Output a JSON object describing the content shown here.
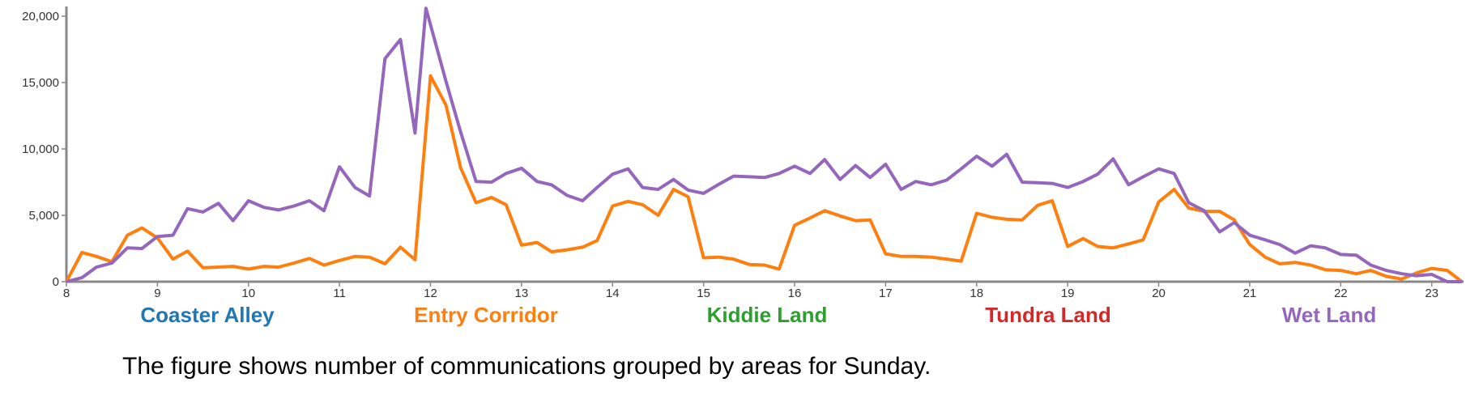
{
  "chart_data": {
    "type": "line",
    "title": "",
    "xlabel": "",
    "ylabel": "",
    "xlim": [
      8,
      23.35
    ],
    "ylim": [
      0,
      20000
    ],
    "grid": false,
    "x_ticks": [
      8,
      9,
      10,
      11,
      12,
      13,
      14,
      15,
      16,
      17,
      18,
      19,
      20,
      21,
      22,
      23
    ],
    "y_ticks": [
      {
        "value": 0,
        "label": "0"
      },
      {
        "value": 5000,
        "label": "5,000"
      },
      {
        "value": 10000,
        "label": "10,000"
      },
      {
        "value": 15000,
        "label": "15,000"
      },
      {
        "value": 20000,
        "label": "20,000"
      }
    ],
    "legend": {
      "placement": "bottom",
      "items": [
        {
          "label": "Coaster Alley",
          "color": "#1f77b4"
        },
        {
          "label": "Entry Corridor",
          "color": "#ff7f0e"
        },
        {
          "label": "Kiddie Land",
          "color": "#2ca02c"
        },
        {
          "label": "Tundra Land",
          "color": "#d62728"
        },
        {
          "label": "Wet Land",
          "color": "#9467bd"
        }
      ]
    },
    "series": [
      {
        "name": "Entry Corridor",
        "color": "#ff7f0e",
        "points": [
          [
            8.0,
            0
          ],
          [
            8.17,
            2200
          ],
          [
            8.33,
            1900
          ],
          [
            8.5,
            1500
          ],
          [
            8.67,
            3500
          ],
          [
            8.83,
            4050
          ],
          [
            9.0,
            3300
          ],
          [
            9.17,
            1700
          ],
          [
            9.33,
            2300
          ],
          [
            9.5,
            1050
          ],
          [
            9.67,
            1100
          ],
          [
            9.83,
            1150
          ],
          [
            10.0,
            950
          ],
          [
            10.17,
            1150
          ],
          [
            10.33,
            1100
          ],
          [
            10.5,
            1400
          ],
          [
            10.67,
            1750
          ],
          [
            10.83,
            1250
          ],
          [
            11.0,
            1600
          ],
          [
            11.17,
            1900
          ],
          [
            11.33,
            1850
          ],
          [
            11.5,
            1350
          ],
          [
            11.67,
            2600
          ],
          [
            11.83,
            1650
          ],
          [
            12.0,
            15500
          ],
          [
            12.17,
            13300
          ],
          [
            12.33,
            8600
          ],
          [
            12.5,
            5950
          ],
          [
            12.67,
            6350
          ],
          [
            12.83,
            5800
          ],
          [
            13.0,
            2750
          ],
          [
            13.17,
            2950
          ],
          [
            13.33,
            2250
          ],
          [
            13.5,
            2400
          ],
          [
            13.67,
            2600
          ],
          [
            13.83,
            3100
          ],
          [
            14.0,
            5700
          ],
          [
            14.17,
            6050
          ],
          [
            14.33,
            5800
          ],
          [
            14.5,
            5000
          ],
          [
            14.67,
            6950
          ],
          [
            14.83,
            6400
          ],
          [
            15.0,
            1800
          ],
          [
            15.17,
            1850
          ],
          [
            15.33,
            1700
          ],
          [
            15.5,
            1300
          ],
          [
            15.67,
            1250
          ],
          [
            15.83,
            950
          ],
          [
            16.0,
            4250
          ],
          [
            16.17,
            4800
          ],
          [
            16.33,
            5350
          ],
          [
            16.5,
            4950
          ],
          [
            16.67,
            4600
          ],
          [
            16.83,
            4650
          ],
          [
            17.0,
            2100
          ],
          [
            17.17,
            1900
          ],
          [
            17.33,
            1900
          ],
          [
            17.5,
            1850
          ],
          [
            17.67,
            1700
          ],
          [
            17.83,
            1550
          ],
          [
            18.0,
            5150
          ],
          [
            18.17,
            4850
          ],
          [
            18.33,
            4700
          ],
          [
            18.5,
            4650
          ],
          [
            18.67,
            5750
          ],
          [
            18.83,
            6100
          ],
          [
            19.0,
            2650
          ],
          [
            19.17,
            3250
          ],
          [
            19.33,
            2650
          ],
          [
            19.5,
            2550
          ],
          [
            19.67,
            2850
          ],
          [
            19.83,
            3150
          ],
          [
            20.0,
            6000
          ],
          [
            20.17,
            6950
          ],
          [
            20.33,
            5550
          ],
          [
            20.5,
            5300
          ],
          [
            20.67,
            5300
          ],
          [
            20.83,
            4650
          ],
          [
            21.0,
            2800
          ],
          [
            21.17,
            1850
          ],
          [
            21.33,
            1350
          ],
          [
            21.5,
            1450
          ],
          [
            21.67,
            1250
          ],
          [
            21.83,
            900
          ],
          [
            22.0,
            850
          ],
          [
            22.17,
            600
          ],
          [
            22.33,
            850
          ],
          [
            22.5,
            400
          ],
          [
            22.67,
            200
          ],
          [
            22.83,
            650
          ],
          [
            23.0,
            1000
          ],
          [
            23.17,
            850
          ],
          [
            23.33,
            0
          ]
        ]
      },
      {
        "name": "Wet Land",
        "color": "#9467bd",
        "points": [
          [
            8.0,
            0
          ],
          [
            8.17,
            300
          ],
          [
            8.33,
            1100
          ],
          [
            8.5,
            1400
          ],
          [
            8.67,
            2550
          ],
          [
            8.83,
            2500
          ],
          [
            9.0,
            3400
          ],
          [
            9.17,
            3500
          ],
          [
            9.33,
            5500
          ],
          [
            9.5,
            5250
          ],
          [
            9.67,
            5900
          ],
          [
            9.83,
            4600
          ],
          [
            10.0,
            6100
          ],
          [
            10.17,
            5600
          ],
          [
            10.33,
            5400
          ],
          [
            10.5,
            5700
          ],
          [
            10.67,
            6100
          ],
          [
            10.83,
            5350
          ],
          [
            11.0,
            8650
          ],
          [
            11.17,
            7100
          ],
          [
            11.33,
            6450
          ],
          [
            11.5,
            16800
          ],
          [
            11.67,
            18250
          ],
          [
            11.83,
            11200
          ],
          [
            11.95,
            20600
          ],
          [
            12.17,
            15100
          ],
          [
            12.33,
            11300
          ],
          [
            12.5,
            7550
          ],
          [
            12.67,
            7500
          ],
          [
            12.83,
            8150
          ],
          [
            13.0,
            8550
          ],
          [
            13.17,
            7550
          ],
          [
            13.33,
            7300
          ],
          [
            13.5,
            6500
          ],
          [
            13.67,
            6100
          ],
          [
            13.83,
            7100
          ],
          [
            14.0,
            8100
          ],
          [
            14.17,
            8500
          ],
          [
            14.33,
            7100
          ],
          [
            14.5,
            6950
          ],
          [
            14.67,
            7700
          ],
          [
            14.83,
            6900
          ],
          [
            15.0,
            6650
          ],
          [
            15.17,
            7350
          ],
          [
            15.33,
            7950
          ],
          [
            15.5,
            7900
          ],
          [
            15.67,
            7850
          ],
          [
            15.83,
            8150
          ],
          [
            16.0,
            8700
          ],
          [
            16.17,
            8150
          ],
          [
            16.33,
            9200
          ],
          [
            16.5,
            7700
          ],
          [
            16.67,
            8750
          ],
          [
            16.83,
            7850
          ],
          [
            17.0,
            8850
          ],
          [
            17.17,
            6950
          ],
          [
            17.33,
            7550
          ],
          [
            17.5,
            7300
          ],
          [
            17.67,
            7650
          ],
          [
            17.83,
            8500
          ],
          [
            18.0,
            9450
          ],
          [
            18.17,
            8700
          ],
          [
            18.33,
            9600
          ],
          [
            18.5,
            7500
          ],
          [
            18.67,
            7450
          ],
          [
            18.83,
            7400
          ],
          [
            19.0,
            7100
          ],
          [
            19.17,
            7550
          ],
          [
            19.33,
            8100
          ],
          [
            19.5,
            9250
          ],
          [
            19.67,
            7300
          ],
          [
            19.83,
            7900
          ],
          [
            20.0,
            8500
          ],
          [
            20.17,
            8150
          ],
          [
            20.33,
            5950
          ],
          [
            20.5,
            5350
          ],
          [
            20.67,
            3750
          ],
          [
            20.83,
            4450
          ],
          [
            21.0,
            3500
          ],
          [
            21.17,
            3150
          ],
          [
            21.33,
            2800
          ],
          [
            21.5,
            2150
          ],
          [
            21.67,
            2700
          ],
          [
            21.83,
            2550
          ],
          [
            22.0,
            2050
          ],
          [
            22.17,
            2000
          ],
          [
            22.33,
            1250
          ],
          [
            22.5,
            850
          ],
          [
            22.67,
            600
          ],
          [
            22.83,
            450
          ],
          [
            23.0,
            550
          ],
          [
            23.17,
            0
          ],
          [
            23.33,
            0
          ]
        ]
      }
    ]
  },
  "caption": "The figure shows number of communications grouped by areas for Sunday."
}
